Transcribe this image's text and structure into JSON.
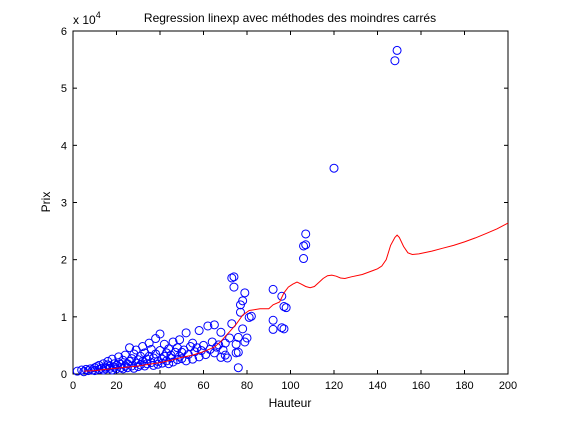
{
  "chart_data": {
    "type": "scatter",
    "title": "Regression linexp avec méthodes des moindres carrés",
    "xlabel": "Hauteur",
    "ylabel": "Prix",
    "exponent_label": "x 10",
    "exponent_power": "4",
    "xlim": [
      0,
      200
    ],
    "ylim": [
      0,
      60000
    ],
    "x_ticks": [
      0,
      20,
      40,
      60,
      80,
      100,
      120,
      140,
      160,
      180,
      200
    ],
    "y_ticks": [
      0,
      10000,
      20000,
      30000,
      40000,
      50000,
      60000
    ],
    "y_tick_labels": [
      "0",
      "1",
      "2",
      "3",
      "4",
      "5",
      "6"
    ],
    "grid": false,
    "colors": {
      "scatter": "#0000ff",
      "fit": "#ff0000"
    },
    "series": [
      {
        "kind": "scatter",
        "marker": "circle",
        "points": [
          [
            2,
            500
          ],
          [
            4,
            700
          ],
          [
            5,
            400
          ],
          [
            6,
            800
          ],
          [
            7,
            600
          ],
          [
            8,
            900
          ],
          [
            9,
            700
          ],
          [
            10,
            1100
          ],
          [
            10,
            600
          ],
          [
            11,
            1300
          ],
          [
            12,
            800
          ],
          [
            12,
            1500
          ],
          [
            13,
            1000
          ],
          [
            14,
            700
          ],
          [
            14,
            1800
          ],
          [
            15,
            1200
          ],
          [
            15,
            900
          ],
          [
            16,
            1600
          ],
          [
            16,
            2200
          ],
          [
            17,
            1000
          ],
          [
            17,
            1400
          ],
          [
            18,
            700
          ],
          [
            18,
            2600
          ],
          [
            19,
            1200
          ],
          [
            19,
            1800
          ],
          [
            20,
            900
          ],
          [
            20,
            1500
          ],
          [
            21,
            2000
          ],
          [
            21,
            3000
          ],
          [
            22,
            1100
          ],
          [
            22,
            1700
          ],
          [
            23,
            2400
          ],
          [
            23,
            900
          ],
          [
            24,
            1400
          ],
          [
            24,
            3300
          ],
          [
            25,
            1800
          ],
          [
            25,
            1100
          ],
          [
            26,
            2200
          ],
          [
            26,
            4600
          ],
          [
            27,
            1400
          ],
          [
            27,
            2700
          ],
          [
            28,
            1000
          ],
          [
            28,
            3500
          ],
          [
            29,
            1900
          ],
          [
            29,
            4200
          ],
          [
            30,
            1300
          ],
          [
            30,
            2500
          ],
          [
            31,
            3100
          ],
          [
            31,
            1600
          ],
          [
            32,
            4800
          ],
          [
            32,
            2200
          ],
          [
            33,
            1400
          ],
          [
            33,
            3700
          ],
          [
            34,
            2600
          ],
          [
            34,
            1800
          ],
          [
            35,
            5400
          ],
          [
            35,
            3100
          ],
          [
            36,
            2000
          ],
          [
            36,
            4300
          ],
          [
            37,
            1500
          ],
          [
            37,
            2800
          ],
          [
            38,
            3500
          ],
          [
            38,
            6200
          ],
          [
            39,
            2200
          ],
          [
            39,
            1700
          ],
          [
            40,
            7000
          ],
          [
            40,
            4100
          ],
          [
            41,
            2600
          ],
          [
            41,
            1900
          ],
          [
            42,
            3100
          ],
          [
            42,
            5200
          ],
          [
            43,
            2300
          ],
          [
            43,
            3700
          ],
          [
            44,
            1800
          ],
          [
            44,
            4400
          ],
          [
            45,
            2800
          ],
          [
            45,
            3300
          ],
          [
            46,
            2100
          ],
          [
            46,
            5600
          ],
          [
            47,
            3800
          ],
          [
            48,
            2500
          ],
          [
            48,
            4600
          ],
          [
            49,
            3100
          ],
          [
            49,
            6000
          ],
          [
            50,
            2700
          ],
          [
            50,
            3800
          ],
          [
            51,
            4200
          ],
          [
            52,
            2300
          ],
          [
            52,
            7200
          ],
          [
            53,
            3400
          ],
          [
            54,
            4800
          ],
          [
            55,
            2600
          ],
          [
            55,
            5400
          ],
          [
            56,
            3900
          ],
          [
            57,
            4600
          ],
          [
            58,
            3000
          ],
          [
            58,
            7600
          ],
          [
            59,
            4100
          ],
          [
            60,
            5000
          ],
          [
            61,
            3400
          ],
          [
            62,
            8400
          ],
          [
            63,
            4300
          ],
          [
            64,
            5600
          ],
          [
            65,
            3700
          ],
          [
            65,
            8600
          ],
          [
            66,
            4700
          ],
          [
            67,
            5100
          ],
          [
            68,
            2900
          ],
          [
            68,
            7300
          ],
          [
            69,
            4200
          ],
          [
            70,
            5400
          ],
          [
            70,
            3300
          ],
          [
            71,
            2800
          ],
          [
            72,
            6300
          ],
          [
            73,
            8800
          ],
          [
            73,
            16800
          ],
          [
            74,
            15200
          ],
          [
            74,
            17000
          ],
          [
            75,
            5200
          ],
          [
            75,
            3700
          ],
          [
            76,
            6400
          ],
          [
            77,
            10800
          ],
          [
            77,
            12100
          ],
          [
            78,
            12800
          ],
          [
            78,
            7900
          ],
          [
            79,
            14200
          ],
          [
            79,
            5600
          ],
          [
            80,
            6300
          ],
          [
            81,
            9900
          ],
          [
            82,
            10100
          ],
          [
            76,
            1100
          ],
          [
            76,
            3800
          ],
          [
            92,
            9400
          ],
          [
            92,
            7800
          ],
          [
            92,
            14800
          ],
          [
            96,
            13600
          ],
          [
            96,
            8100
          ],
          [
            97,
            7900
          ],
          [
            97,
            11800
          ],
          [
            98,
            11600
          ],
          [
            106,
            20200
          ],
          [
            106,
            22400
          ],
          [
            107,
            22600
          ],
          [
            107,
            24500
          ],
          [
            120,
            36000
          ],
          [
            148,
            54800
          ],
          [
            149,
            56600
          ]
        ]
      },
      {
        "kind": "line",
        "points": [
          [
            5,
            500
          ],
          [
            10,
            600
          ],
          [
            15,
            800
          ],
          [
            20,
            1000
          ],
          [
            25,
            1200
          ],
          [
            30,
            1400
          ],
          [
            35,
            1700
          ],
          [
            40,
            2000
          ],
          [
            45,
            2400
          ],
          [
            50,
            2900
          ],
          [
            55,
            3300
          ],
          [
            60,
            3900
          ],
          [
            65,
            4700
          ],
          [
            68,
            5700
          ],
          [
            70,
            6600
          ],
          [
            72,
            7400
          ],
          [
            75,
            8700
          ],
          [
            78,
            10300
          ],
          [
            81,
            11100
          ],
          [
            86,
            11400
          ],
          [
            90,
            11400
          ],
          [
            92,
            12100
          ],
          [
            95,
            12600
          ],
          [
            97,
            14200
          ],
          [
            99,
            15200
          ],
          [
            101,
            15700
          ],
          [
            103,
            16100
          ],
          [
            105,
            15700
          ],
          [
            107,
            15300
          ],
          [
            109,
            15100
          ],
          [
            111,
            15300
          ],
          [
            113,
            16000
          ],
          [
            115,
            16700
          ],
          [
            117,
            17200
          ],
          [
            119,
            17300
          ],
          [
            121,
            17100
          ],
          [
            123,
            16800
          ],
          [
            125,
            16700
          ],
          [
            128,
            17000
          ],
          [
            133,
            17400
          ],
          [
            138,
            18100
          ],
          [
            140,
            18400
          ],
          [
            142,
            18900
          ],
          [
            144,
            20000
          ],
          [
            146,
            22500
          ],
          [
            148,
            23900
          ],
          [
            149,
            24300
          ],
          [
            150,
            23900
          ],
          [
            152,
            22300
          ],
          [
            154,
            21200
          ],
          [
            156,
            20900
          ],
          [
            159,
            21000
          ],
          [
            165,
            21500
          ],
          [
            170,
            22000
          ],
          [
            175,
            22500
          ],
          [
            180,
            23100
          ],
          [
            185,
            23800
          ],
          [
            190,
            24600
          ],
          [
            195,
            25400
          ],
          [
            200,
            26400
          ]
        ]
      }
    ]
  }
}
